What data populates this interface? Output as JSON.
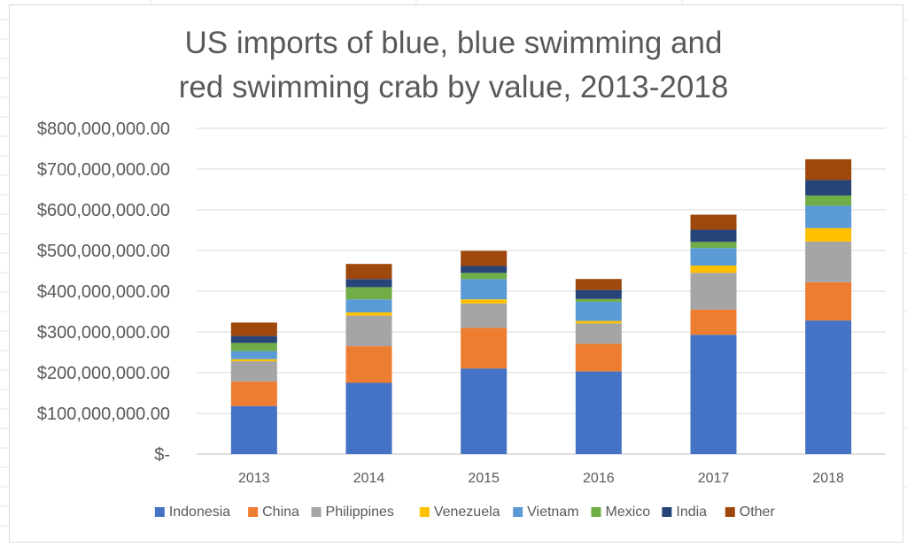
{
  "chart_data": {
    "type": "bar",
    "stacked": true,
    "title_lines": [
      "US imports of blue, blue swimming and",
      "red swimming crab by value, 2013-2018"
    ],
    "xlabel": "",
    "ylabel": "",
    "ylim": [
      0,
      800000000
    ],
    "y_ticks": [
      {
        "value": 0,
        "label": "$-"
      },
      {
        "value": 100000000,
        "label": "$100,000,000.00"
      },
      {
        "value": 200000000,
        "label": "$200,000,000.00"
      },
      {
        "value": 300000000,
        "label": "$300,000,000.00"
      },
      {
        "value": 400000000,
        "label": "$400,000,000.00"
      },
      {
        "value": 500000000,
        "label": "$500,000,000.00"
      },
      {
        "value": 600000000,
        "label": "$600,000,000.00"
      },
      {
        "value": 700000000,
        "label": "$700,000,000.00"
      },
      {
        "value": 800000000,
        "label": "$800,000,000.00"
      }
    ],
    "grid": true,
    "legend_position": "bottom",
    "categories": [
      "2013",
      "2014",
      "2015",
      "2016",
      "2017",
      "2018"
    ],
    "series": [
      {
        "name": "Indonesia",
        "color": "#4472C4",
        "values": [
          118000000,
          175000000,
          210000000,
          203000000,
          293000000,
          328000000
        ]
      },
      {
        "name": "China",
        "color": "#ED7D31",
        "values": [
          60000000,
          90000000,
          100000000,
          68000000,
          62000000,
          94000000
        ]
      },
      {
        "name": "Philippines",
        "color": "#A5A5A5",
        "values": [
          50000000,
          75000000,
          60000000,
          50000000,
          90000000,
          100000000
        ]
      },
      {
        "name": "Venezuela",
        "color": "#FFC000",
        "values": [
          5000000,
          8000000,
          10000000,
          6000000,
          18000000,
          33000000
        ]
      },
      {
        "name": "Vietnam",
        "color": "#5B9BD5",
        "values": [
          20000000,
          32000000,
          50000000,
          47000000,
          43000000,
          55000000
        ]
      },
      {
        "name": "Mexico",
        "color": "#70AD47",
        "values": [
          20000000,
          30000000,
          15000000,
          7000000,
          15000000,
          25000000
        ]
      },
      {
        "name": "India",
        "color": "#264478",
        "values": [
          17000000,
          20000000,
          17000000,
          22000000,
          30000000,
          38000000
        ]
      },
      {
        "name": "Other",
        "color": "#9E480E",
        "values": [
          33000000,
          37000000,
          37000000,
          27000000,
          37000000,
          51000000
        ]
      }
    ]
  }
}
